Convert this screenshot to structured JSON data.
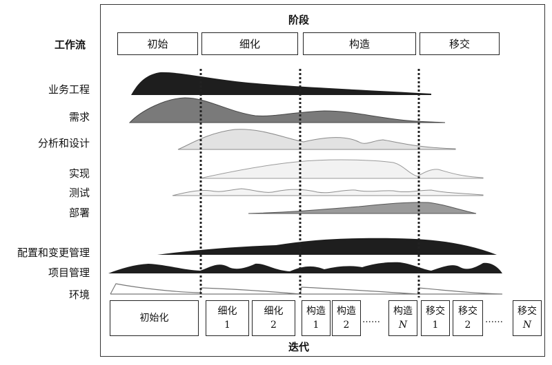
{
  "header": {
    "phase_label": "阶段",
    "workflow_label": "工作流",
    "iteration_label": "迭代"
  },
  "phases": [
    "初始",
    "细化",
    "构造",
    "移交"
  ],
  "workflows": [
    "业务工程",
    "需求",
    "分析和设计",
    "实现",
    "测试",
    "部署",
    "配置和变更管理",
    "项目管理",
    "环境"
  ],
  "iterations": [
    {
      "name": "初始化",
      "num": ""
    },
    {
      "name": "细化",
      "num": "1"
    },
    {
      "name": "细化",
      "num": "2"
    },
    {
      "name": "构造",
      "num": "1"
    },
    {
      "name": "构造",
      "num": "2"
    },
    {
      "name": "构造",
      "num": "N"
    },
    {
      "name": "移交",
      "num": "1"
    },
    {
      "name": "移交",
      "num": "2"
    },
    {
      "name": "移交",
      "num": "N"
    }
  ],
  "ellipsis": "……",
  "colors": {
    "dark": "#1e1e1e",
    "mid": "#7a7a7a",
    "light": "#cfcfcf",
    "line": "#222222"
  }
}
